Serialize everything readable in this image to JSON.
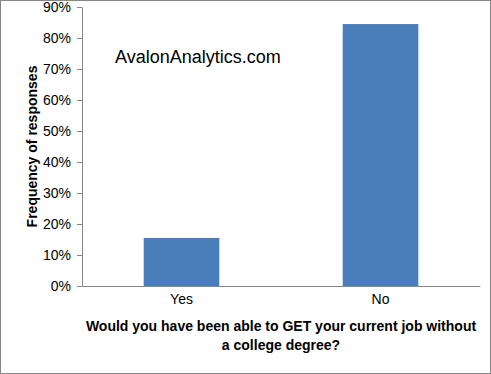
{
  "chart_data": {
    "type": "bar",
    "annotations": [
      "AvalonAnalytics.com"
    ],
    "x_label": "Would you have been able to GET your current job without a college degree?",
    "y_label": "Frequency of responses",
    "categories": [
      "Yes",
      "No"
    ],
    "values": [
      15.5,
      84.5
    ],
    "color": "#4a7ebb",
    "ylim": [
      0,
      90
    ],
    "yticks": [
      {
        "value": 0,
        "label": "0%"
      },
      {
        "value": 10,
        "label": "10%"
      },
      {
        "value": 20,
        "label": "20%"
      },
      {
        "value": 30,
        "label": "30%"
      },
      {
        "value": 40,
        "label": "40%"
      },
      {
        "value": 50,
        "label": "50%"
      },
      {
        "value": 60,
        "label": "60%"
      },
      {
        "value": 70,
        "label": "70%"
      },
      {
        "value": 80,
        "label": "80%"
      },
      {
        "value": 90,
        "label": "90%"
      }
    ],
    "grid": false
  }
}
